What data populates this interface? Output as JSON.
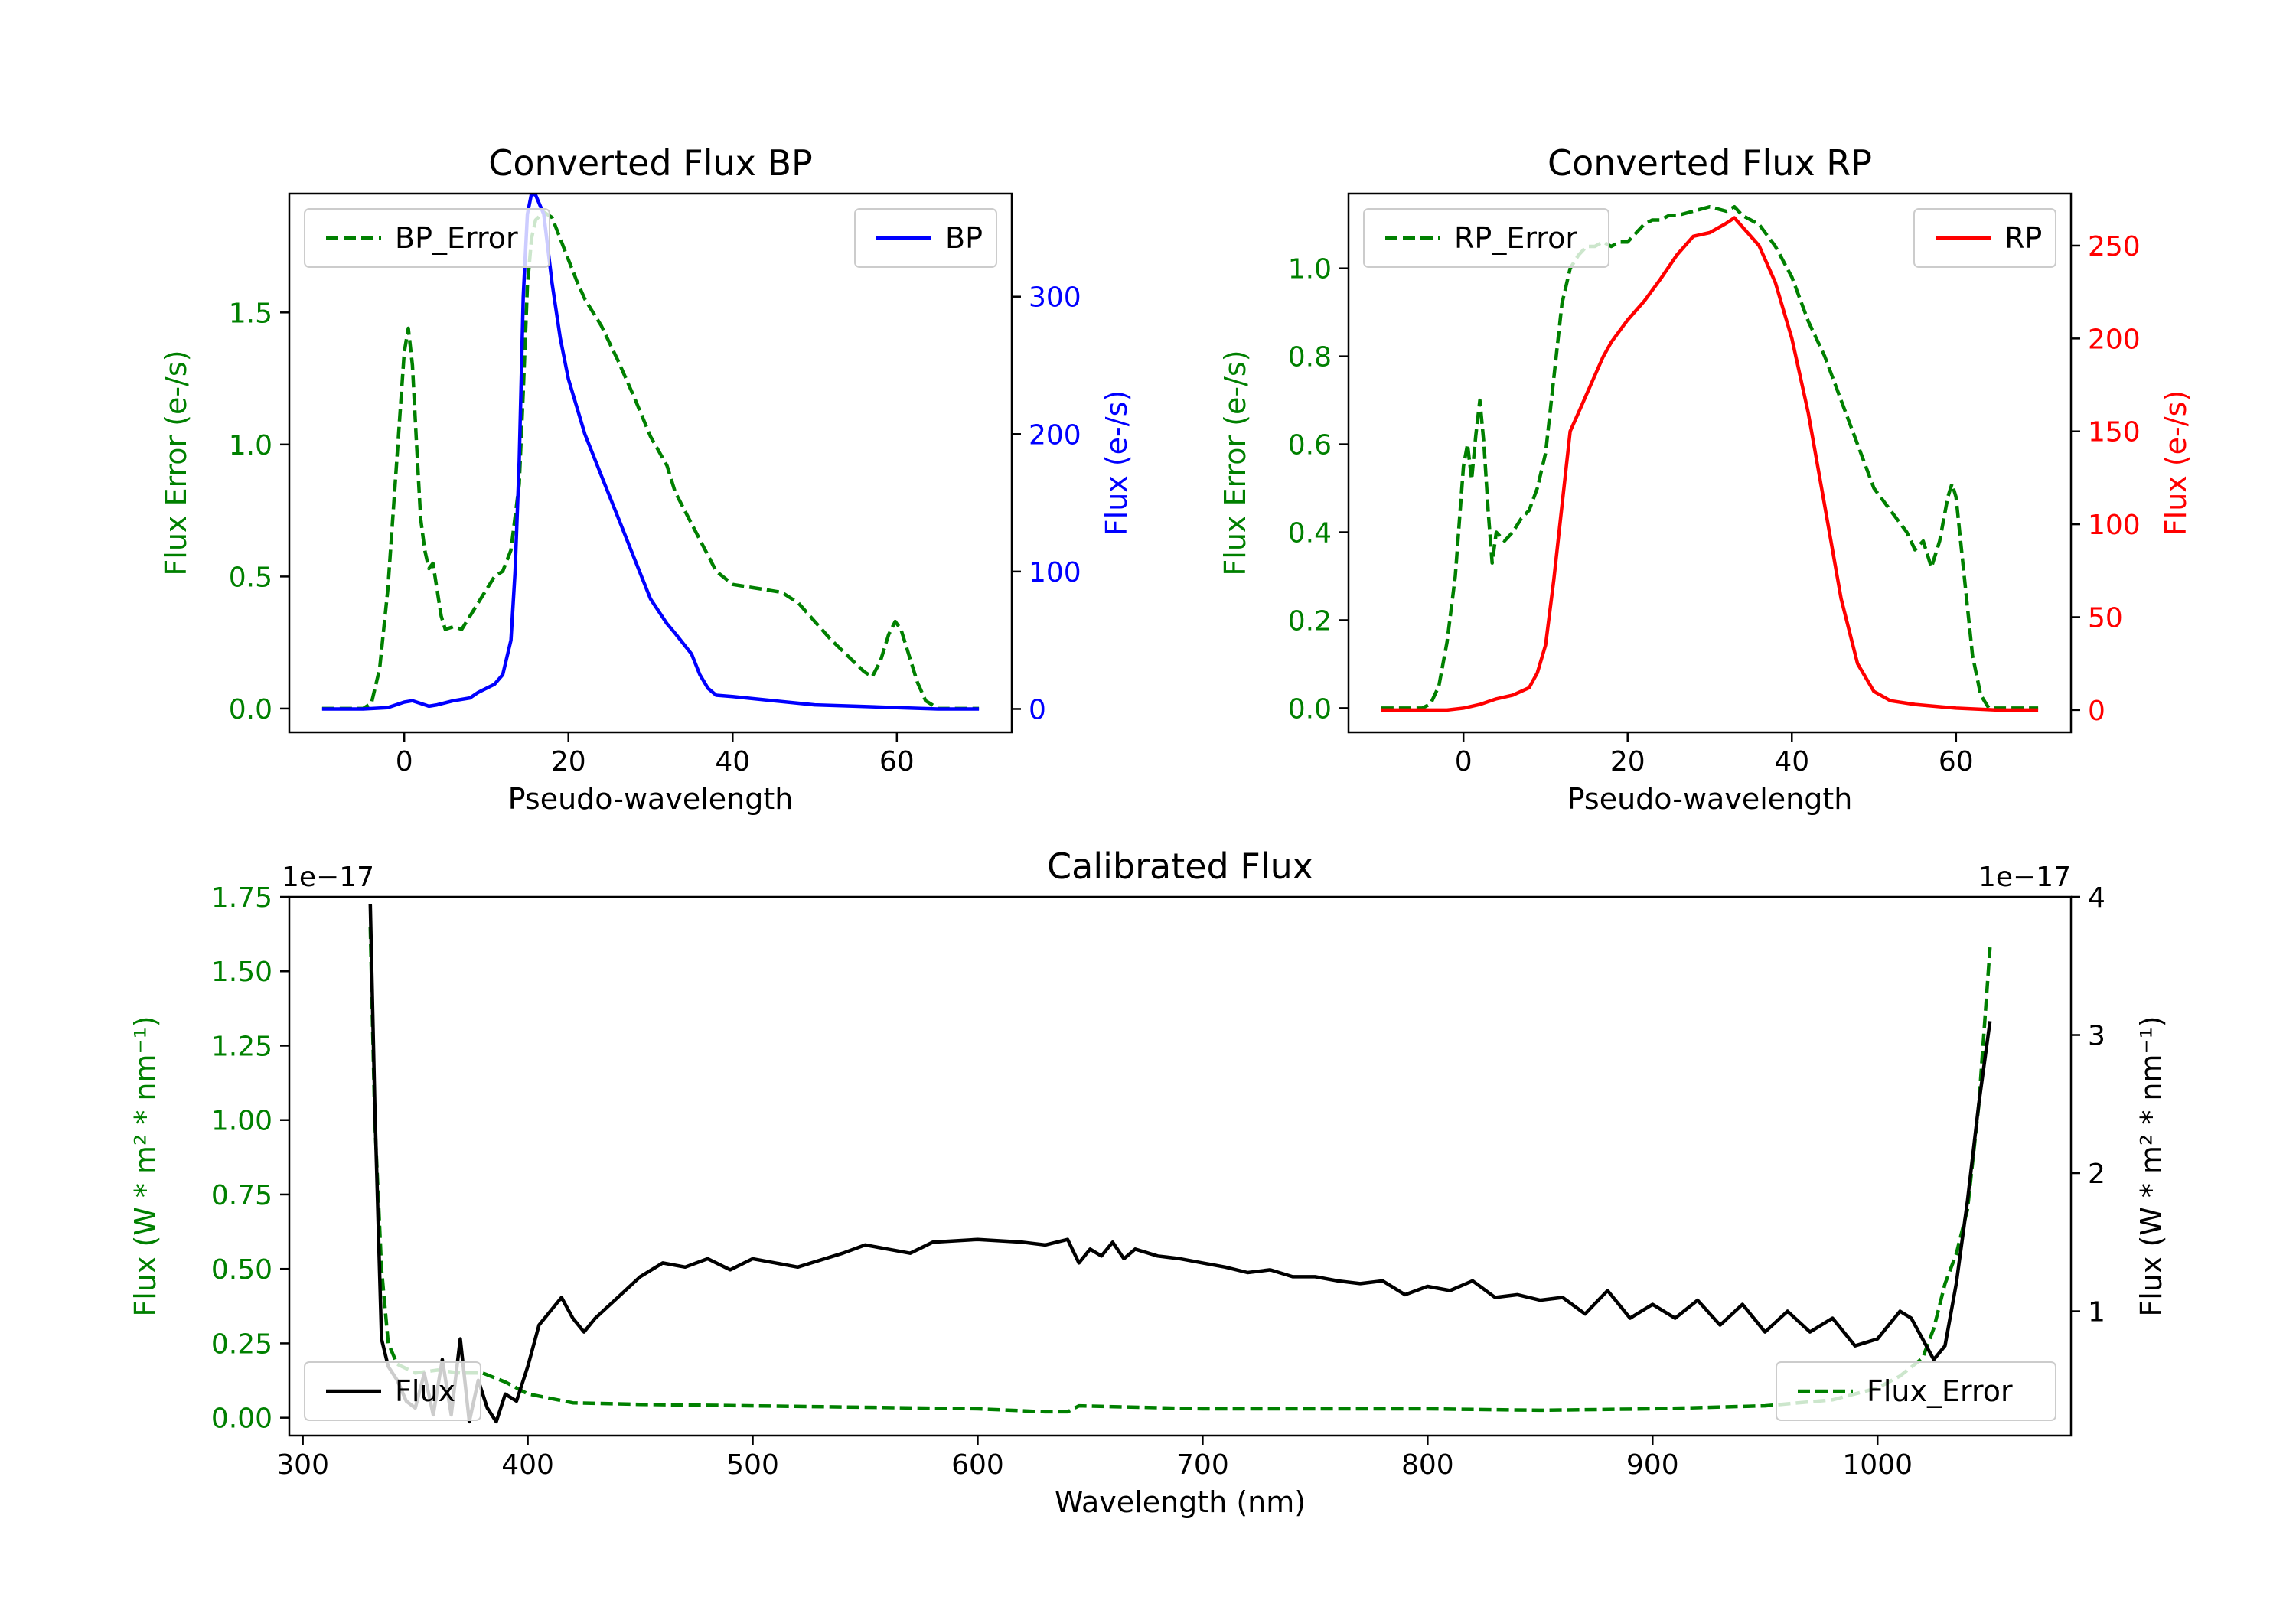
{
  "chart_data": [
    {
      "type": "line",
      "title": "Converted Flux BP",
      "xlabel": "Pseudo-wavelength",
      "xlim": [
        -14,
        74
      ],
      "x_ticks": [
        0,
        20,
        40,
        60
      ],
      "left_axis": {
        "label": "Flux Error (e-/s)",
        "color": "#008000",
        "ylim": [
          -0.09,
          1.95
        ],
        "ticks": [
          0.0,
          0.5,
          1.0,
          1.5
        ],
        "tick_labels": [
          "0.0",
          "0.5",
          "1.0",
          "1.5"
        ]
      },
      "right_axis": {
        "label": "Flux (e-/s)",
        "color": "#0000ff",
        "ylim": [
          -17,
          375
        ],
        "ticks": [
          0,
          100,
          200,
          300
        ],
        "tick_labels": [
          "0",
          "100",
          "200",
          "300"
        ]
      },
      "series": [
        {
          "name": "BP_Error",
          "axis": "left",
          "color": "#008000",
          "dash": true,
          "x": [
            -10,
            -5,
            -4,
            -3,
            -2,
            -1,
            0,
            0.5,
            1,
            1.5,
            2,
            2.5,
            3,
            3.5,
            4,
            4.5,
            5,
            6,
            7,
            8,
            9,
            10,
            11,
            12,
            13,
            14,
            14.5,
            15,
            15.5,
            16,
            17,
            18,
            19,
            20,
            21,
            22,
            24,
            26,
            28,
            30,
            32,
            33,
            35,
            37,
            38,
            40,
            42,
            44,
            46,
            48,
            50,
            52,
            54,
            56,
            57,
            58,
            59,
            59.8,
            60.5,
            61.5,
            62.5,
            63.5,
            65,
            70
          ],
          "values": [
            0.0,
            0.0,
            0.02,
            0.15,
            0.45,
            0.9,
            1.35,
            1.44,
            1.3,
            1.0,
            0.72,
            0.6,
            0.53,
            0.55,
            0.45,
            0.35,
            0.3,
            0.31,
            0.3,
            0.35,
            0.4,
            0.45,
            0.5,
            0.52,
            0.6,
            0.85,
            1.2,
            1.6,
            1.78,
            1.85,
            1.88,
            1.86,
            1.78,
            1.7,
            1.62,
            1.55,
            1.45,
            1.32,
            1.18,
            1.03,
            0.92,
            0.82,
            0.7,
            0.58,
            0.52,
            0.47,
            0.46,
            0.45,
            0.44,
            0.4,
            0.33,
            0.26,
            0.2,
            0.14,
            0.12,
            0.18,
            0.28,
            0.33,
            0.3,
            0.2,
            0.1,
            0.03,
            0.0,
            0.0
          ]
        },
        {
          "name": "BP",
          "axis": "right",
          "color": "#0000ff",
          "dash": false,
          "x": [
            -10,
            -5,
            -2,
            0,
            1,
            2,
            3,
            4,
            6,
            8,
            9,
            10,
            11,
            12,
            13,
            13.5,
            14,
            14.5,
            15,
            15.5,
            16,
            17,
            18,
            19,
            20,
            21,
            22,
            24,
            26,
            28,
            30,
            32,
            33,
            35,
            36,
            37,
            38,
            40,
            45,
            50,
            55,
            60,
            65,
            70
          ],
          "values": [
            0,
            0,
            1,
            5,
            6,
            4,
            2,
            3,
            6,
            8,
            12,
            15,
            18,
            25,
            50,
            100,
            180,
            300,
            360,
            375,
            374,
            360,
            310,
            270,
            240,
            220,
            200,
            170,
            140,
            110,
            80,
            62,
            55,
            40,
            25,
            15,
            10,
            9,
            6,
            3,
            2,
            1,
            0,
            0
          ]
        }
      ],
      "legend": [
        {
          "label": "BP_Error",
          "position": "upper-left"
        },
        {
          "label": "BP",
          "position": "upper-right"
        }
      ]
    },
    {
      "type": "line",
      "title": "Converted Flux RP",
      "xlabel": "Pseudo-wavelength",
      "xlim": [
        -14,
        74
      ],
      "x_ticks": [
        0,
        20,
        40,
        60
      ],
      "left_axis": {
        "label": "Flux Error (e-/s)",
        "color": "#008000",
        "ylim": [
          -0.055,
          1.17
        ],
        "ticks": [
          0.0,
          0.2,
          0.4,
          0.6,
          0.8,
          1.0
        ],
        "tick_labels": [
          "0.0",
          "0.2",
          "0.4",
          "0.6",
          "0.8",
          "1.0"
        ]
      },
      "right_axis": {
        "label": "Flux (e-/s)",
        "color": "#ff0000",
        "ylim": [
          -12,
          278
        ],
        "ticks": [
          0,
          50,
          100,
          150,
          200,
          250
        ],
        "tick_labels": [
          "0",
          "50",
          "100",
          "150",
          "200",
          "250"
        ]
      },
      "series": [
        {
          "name": "RP_Error",
          "axis": "left",
          "color": "#008000",
          "dash": true,
          "x": [
            -10,
            -5,
            -4,
            -3,
            -2,
            -1,
            0,
            0.5,
            1,
            1.5,
            2,
            2.5,
            3,
            3.5,
            4,
            5,
            6,
            7,
            8,
            9,
            10,
            11,
            12,
            13,
            14,
            15,
            16,
            17,
            18,
            19,
            20,
            21,
            22,
            23,
            24,
            25,
            26,
            28,
            30,
            32,
            33,
            34,
            36,
            38,
            40,
            42,
            44,
            46,
            48,
            50,
            52,
            54,
            55,
            56,
            57,
            58,
            59,
            59.5,
            60,
            61,
            62,
            63,
            64,
            65,
            70
          ],
          "values": [
            0.0,
            0.0,
            0.01,
            0.05,
            0.15,
            0.3,
            0.55,
            0.6,
            0.52,
            0.62,
            0.7,
            0.6,
            0.45,
            0.33,
            0.4,
            0.38,
            0.4,
            0.43,
            0.45,
            0.5,
            0.58,
            0.75,
            0.92,
            1.0,
            1.03,
            1.05,
            1.05,
            1.06,
            1.05,
            1.06,
            1.06,
            1.08,
            1.1,
            1.11,
            1.11,
            1.12,
            1.12,
            1.13,
            1.14,
            1.13,
            1.14,
            1.12,
            1.1,
            1.05,
            0.98,
            0.88,
            0.8,
            0.7,
            0.6,
            0.5,
            0.45,
            0.4,
            0.36,
            0.38,
            0.32,
            0.38,
            0.48,
            0.51,
            0.48,
            0.3,
            0.12,
            0.03,
            0.0,
            0.0,
            0.0
          ]
        },
        {
          "name": "RP",
          "axis": "right",
          "color": "#ff0000",
          "dash": false,
          "x": [
            -10,
            -5,
            -2,
            0,
            2,
            4,
            6,
            7,
            8,
            9,
            10,
            11,
            12,
            13,
            14,
            15,
            16,
            17,
            18,
            20,
            22,
            24,
            26,
            28,
            30,
            32,
            33,
            34,
            35,
            36,
            37,
            38,
            39,
            40,
            42,
            44,
            46,
            48,
            50,
            52,
            55,
            60,
            65,
            70
          ],
          "values": [
            0,
            0,
            0,
            1,
            3,
            6,
            8,
            10,
            12,
            20,
            35,
            70,
            110,
            150,
            160,
            170,
            180,
            190,
            198,
            210,
            220,
            232,
            245,
            255,
            257,
            262,
            265,
            260,
            255,
            250,
            240,
            230,
            215,
            200,
            160,
            110,
            60,
            25,
            10,
            5,
            3,
            1,
            0,
            0
          ]
        }
      ],
      "legend": [
        {
          "label": "RP_Error",
          "position": "upper-left"
        },
        {
          "label": "RP",
          "position": "upper-right"
        }
      ]
    },
    {
      "type": "line",
      "title": "Calibrated Flux",
      "xlabel": "Wavelength (nm)",
      "xlim": [
        294,
        1086
      ],
      "x_ticks": [
        300,
        400,
        500,
        600,
        700,
        800,
        900,
        1000
      ],
      "left_axis": {
        "label": "Flux (W * m² * nm⁻¹)",
        "color": "#008000",
        "ylim": [
          -0.06,
          1.75
        ],
        "ticks": [
          0.0,
          0.25,
          0.5,
          0.75,
          1.0,
          1.25,
          1.5,
          1.75
        ],
        "tick_labels": [
          "0.00",
          "0.25",
          "0.50",
          "0.75",
          "1.00",
          "1.25",
          "1.50",
          "1.75"
        ],
        "offset": "1e−17"
      },
      "right_axis": {
        "label": "Flux (W * m² * nm⁻¹)",
        "color": "#000000",
        "ylim": [
          0.1,
          4.0
        ],
        "ticks": [
          1,
          2,
          3,
          4
        ],
        "tick_labels": [
          "1",
          "2",
          "3",
          "4"
        ],
        "offset": "1e−17"
      },
      "series": [
        {
          "name": "Flux_Error",
          "axis": "left",
          "color": "#008000",
          "dash": true,
          "x": [
            330,
            332,
            335,
            338,
            342,
            350,
            360,
            370,
            380,
            390,
            400,
            420,
            450,
            500,
            550,
            600,
            630,
            640,
            645,
            700,
            750,
            800,
            850,
            900,
            950,
            980,
            1000,
            1010,
            1020,
            1025,
            1030,
            1035,
            1040,
            1045,
            1050
          ],
          "values": [
            1.65,
            1.0,
            0.5,
            0.25,
            0.18,
            0.15,
            0.16,
            0.15,
            0.15,
            0.12,
            0.08,
            0.05,
            0.045,
            0.04,
            0.035,
            0.03,
            0.02,
            0.02,
            0.04,
            0.03,
            0.03,
            0.03,
            0.025,
            0.03,
            0.04,
            0.06,
            0.1,
            0.14,
            0.2,
            0.3,
            0.45,
            0.55,
            0.7,
            1.05,
            1.58
          ]
        },
        {
          "name": "Flux",
          "axis": "right",
          "color": "#000000",
          "dash": false,
          "x": [
            330,
            332,
            335,
            338,
            342,
            346,
            350,
            354,
            358,
            362,
            366,
            370,
            374,
            378,
            382,
            386,
            390,
            395,
            400,
            405,
            410,
            415,
            420,
            425,
            430,
            440,
            450,
            460,
            470,
            480,
            490,
            500,
            520,
            540,
            550,
            560,
            570,
            580,
            600,
            620,
            630,
            640,
            645,
            650,
            655,
            660,
            665,
            670,
            680,
            690,
            700,
            710,
            720,
            730,
            740,
            750,
            760,
            770,
            780,
            790,
            800,
            810,
            820,
            830,
            840,
            850,
            860,
            870,
            880,
            890,
            900,
            910,
            920,
            930,
            940,
            950,
            960,
            970,
            980,
            990,
            1000,
            1010,
            1015,
            1020,
            1025,
            1030,
            1035,
            1040,
            1045,
            1050
          ],
          "values": [
            3.95,
            2.5,
            0.8,
            0.6,
            0.5,
            0.35,
            0.3,
            0.55,
            0.25,
            0.65,
            0.25,
            0.8,
            0.2,
            0.5,
            0.3,
            0.2,
            0.4,
            0.35,
            0.6,
            0.9,
            1.0,
            1.1,
            0.95,
            0.85,
            0.95,
            1.1,
            1.25,
            1.35,
            1.32,
            1.38,
            1.3,
            1.38,
            1.32,
            1.42,
            1.48,
            1.45,
            1.42,
            1.5,
            1.52,
            1.5,
            1.48,
            1.52,
            1.35,
            1.45,
            1.4,
            1.5,
            1.38,
            1.45,
            1.4,
            1.38,
            1.35,
            1.32,
            1.28,
            1.3,
            1.25,
            1.25,
            1.22,
            1.2,
            1.22,
            1.12,
            1.18,
            1.15,
            1.22,
            1.1,
            1.12,
            1.08,
            1.1,
            0.98,
            1.15,
            0.95,
            1.05,
            0.95,
            1.08,
            0.9,
            1.05,
            0.85,
            1.0,
            0.85,
            0.95,
            0.75,
            0.8,
            1.0,
            0.95,
            0.8,
            0.65,
            0.75,
            1.2,
            1.8,
            2.5,
            3.1
          ]
        }
      ],
      "legend": [
        {
          "label": "Flux",
          "position": "lower-left"
        },
        {
          "label": "Flux_Error",
          "position": "lower-right"
        }
      ]
    }
  ]
}
